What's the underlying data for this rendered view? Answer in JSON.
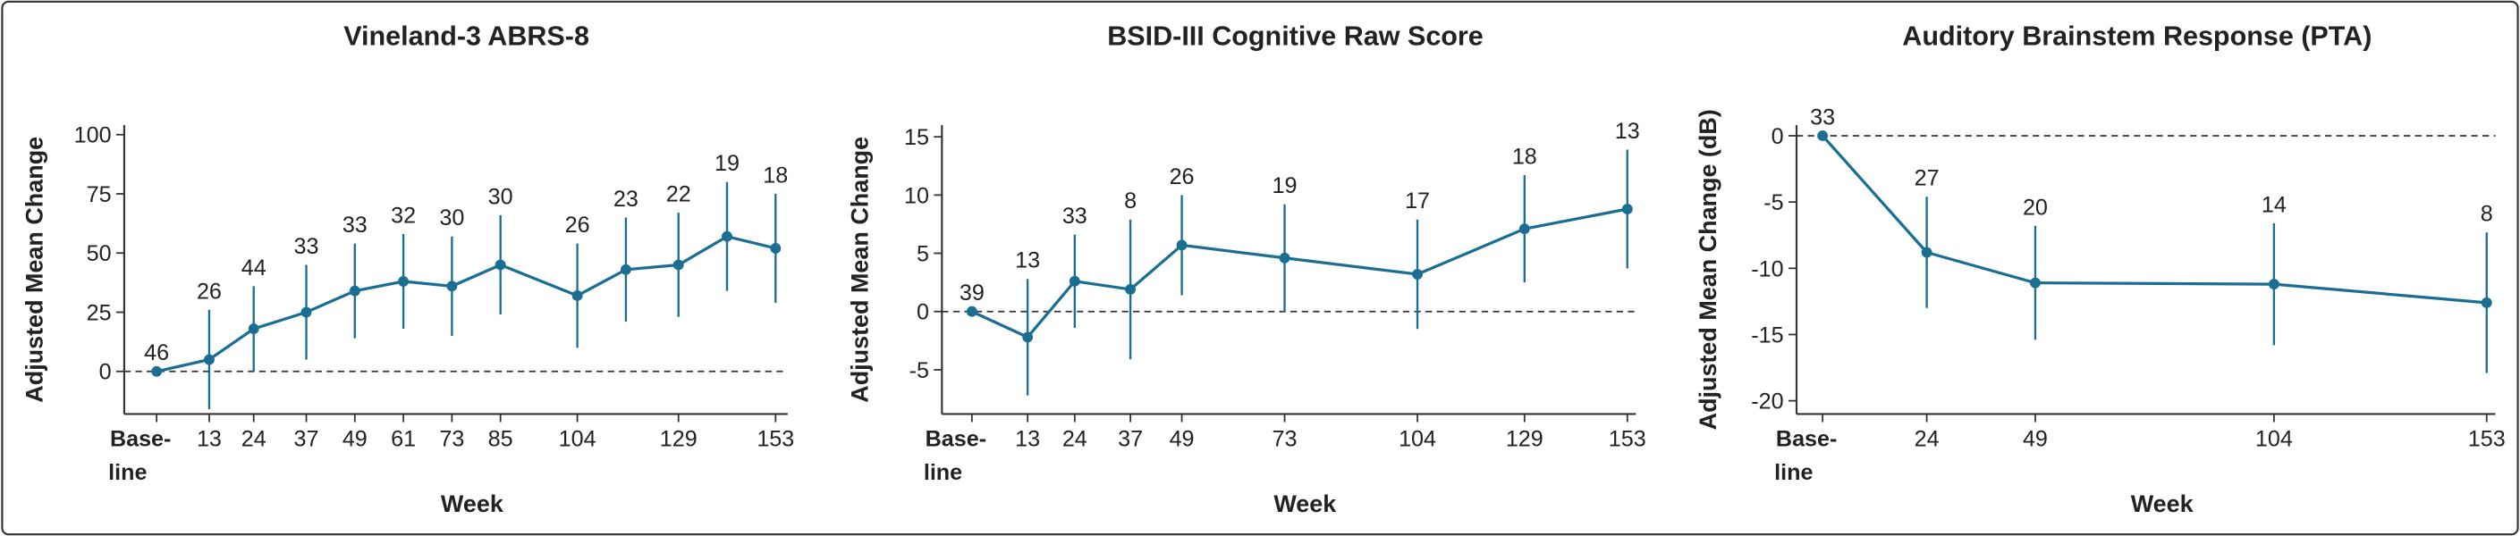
{
  "chart_data": [
    {
      "type": "line",
      "title": "Vineland-3 ABRS-8",
      "ylabel": "Adjusted Mean Change",
      "xlabel": "Week",
      "x": [
        0,
        13,
        24,
        37,
        49,
        61,
        73,
        85,
        104,
        116,
        129,
        141,
        153
      ],
      "xlim": [
        -8,
        156
      ],
      "xticks": [
        {
          "value": 0,
          "label": "Base-\nline"
        },
        13,
        24,
        37,
        49,
        61,
        73,
        85,
        104,
        129,
        153
      ],
      "ylim": [
        -18,
        104
      ],
      "yticks": [
        0,
        25,
        50,
        75,
        100
      ],
      "zero_line": true,
      "series": [
        {
          "color": "#1a6e94",
          "values": [
            0,
            5,
            18,
            25,
            34,
            38,
            36,
            45,
            32,
            43,
            45,
            57,
            52
          ],
          "errors": [
            0,
            21,
            18,
            20,
            20,
            20,
            21,
            21,
            22,
            22,
            22,
            23,
            23
          ],
          "n": [
            46,
            26,
            44,
            33,
            33,
            32,
            30,
            30,
            26,
            23,
            22,
            19,
            18
          ]
        }
      ]
    },
    {
      "type": "line",
      "title": "BSID-III Cognitive Raw Score",
      "ylabel": "Adjusted Mean Change",
      "xlabel": "Week",
      "x": [
        0,
        13,
        24,
        37,
        49,
        73,
        104,
        129,
        153
      ],
      "xlim": [
        -7,
        155
      ],
      "xticks": [
        {
          "value": 0,
          "label": "Base-\nline"
        },
        13,
        24,
        37,
        49,
        73,
        104,
        129,
        153
      ],
      "ylim": [
        -8.8,
        16
      ],
      "yticks": [
        -5,
        0,
        5,
        10,
        15
      ],
      "zero_line": true,
      "series": [
        {
          "color": "#1a6e94",
          "values": [
            0,
            -2.2,
            2.6,
            1.9,
            5.7,
            4.6,
            3.2,
            7.1,
            8.8
          ],
          "errors": [
            0,
            5,
            4,
            6,
            4.3,
            4.6,
            4.7,
            4.6,
            5.1
          ],
          "n": [
            39,
            13,
            33,
            8,
            26,
            19,
            17,
            18,
            13
          ]
        }
      ]
    },
    {
      "type": "line",
      "title": "Auditory Brainstem Response (PTA)",
      "ylabel": "Adjusted Mean Change (dB)",
      "xlabel": "Week",
      "x": [
        0,
        24,
        49,
        104,
        153
      ],
      "xlim": [
        -6,
        155
      ],
      "xticks": [
        {
          "value": 0,
          "label": "Base-\nline"
        },
        24,
        49,
        104,
        153
      ],
      "ylim": [
        -21,
        0.8
      ],
      "yticks": [
        0,
        -5,
        -10,
        -15,
        -20
      ],
      "zero_line": true,
      "series": [
        {
          "color": "#1a6e94",
          "values": [
            0,
            -8.8,
            -11.1,
            -11.2,
            -12.6
          ],
          "errors": [
            0,
            4.2,
            4.3,
            4.6,
            5.3
          ],
          "n": [
            33,
            27,
            20,
            14,
            8
          ]
        }
      ]
    }
  ]
}
